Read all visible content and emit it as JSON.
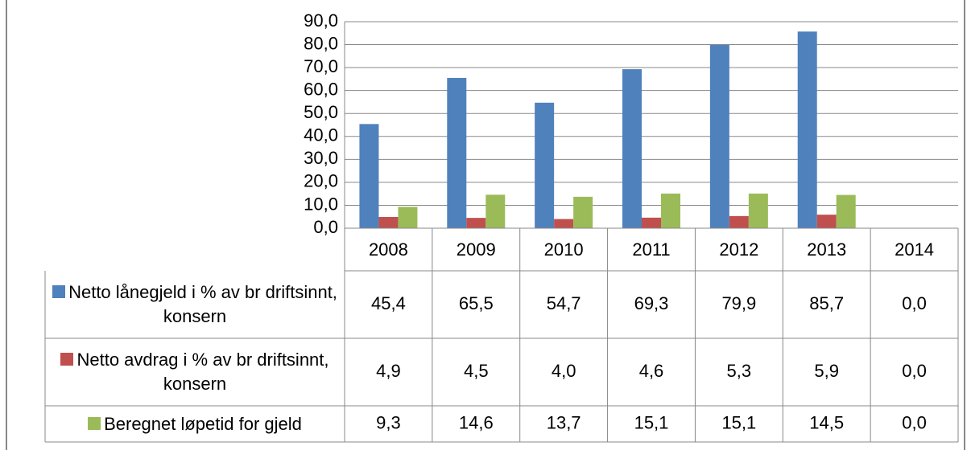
{
  "chart_data": {
    "type": "bar",
    "categories": [
      "2008",
      "2009",
      "2010",
      "2011",
      "2012",
      "2013",
      "2014"
    ],
    "series": [
      {
        "name": "Netto lånegjeld i % av br driftsinnt, konsern",
        "color": "#4f81bd",
        "values": [
          45.4,
          65.5,
          54.7,
          69.3,
          79.9,
          85.7,
          0
        ],
        "value_labels": [
          "45,4",
          "65,5",
          "54,7",
          "69,3",
          "79,9",
          "85,7",
          "0,0"
        ]
      },
      {
        "name": "Netto avdrag i % av br driftsinnt, konsern",
        "color": "#c0504d",
        "values": [
          4.9,
          4.5,
          4.0,
          4.6,
          5.3,
          5.9,
          0
        ],
        "value_labels": [
          "4,9",
          "4,5",
          "4,0",
          "4,6",
          "5,3",
          "5,9",
          "0,0"
        ]
      },
      {
        "name": "Beregnet løpetid for gjeld",
        "color": "#9bbb59",
        "values": [
          9.3,
          14.6,
          13.7,
          15.1,
          15.1,
          14.5,
          0
        ],
        "value_labels": [
          "9,3",
          "14,6",
          "13,7",
          "15,1",
          "15,1",
          "14,5",
          "0,0"
        ]
      }
    ],
    "ylim": [
      0,
      90
    ],
    "yticks": [
      {
        "value": 0,
        "label": "0,0"
      },
      {
        "value": 10,
        "label": "10,0"
      },
      {
        "value": 20,
        "label": "20,0"
      },
      {
        "value": 30,
        "label": "30,0"
      },
      {
        "value": 40,
        "label": "40,0"
      },
      {
        "value": 50,
        "label": "50,0"
      },
      {
        "value": 60,
        "label": "60,0"
      },
      {
        "value": 70,
        "label": "70,0"
      },
      {
        "value": 80,
        "label": "80,0"
      },
      {
        "value": 90,
        "label": "90,0"
      }
    ],
    "grid": true
  }
}
